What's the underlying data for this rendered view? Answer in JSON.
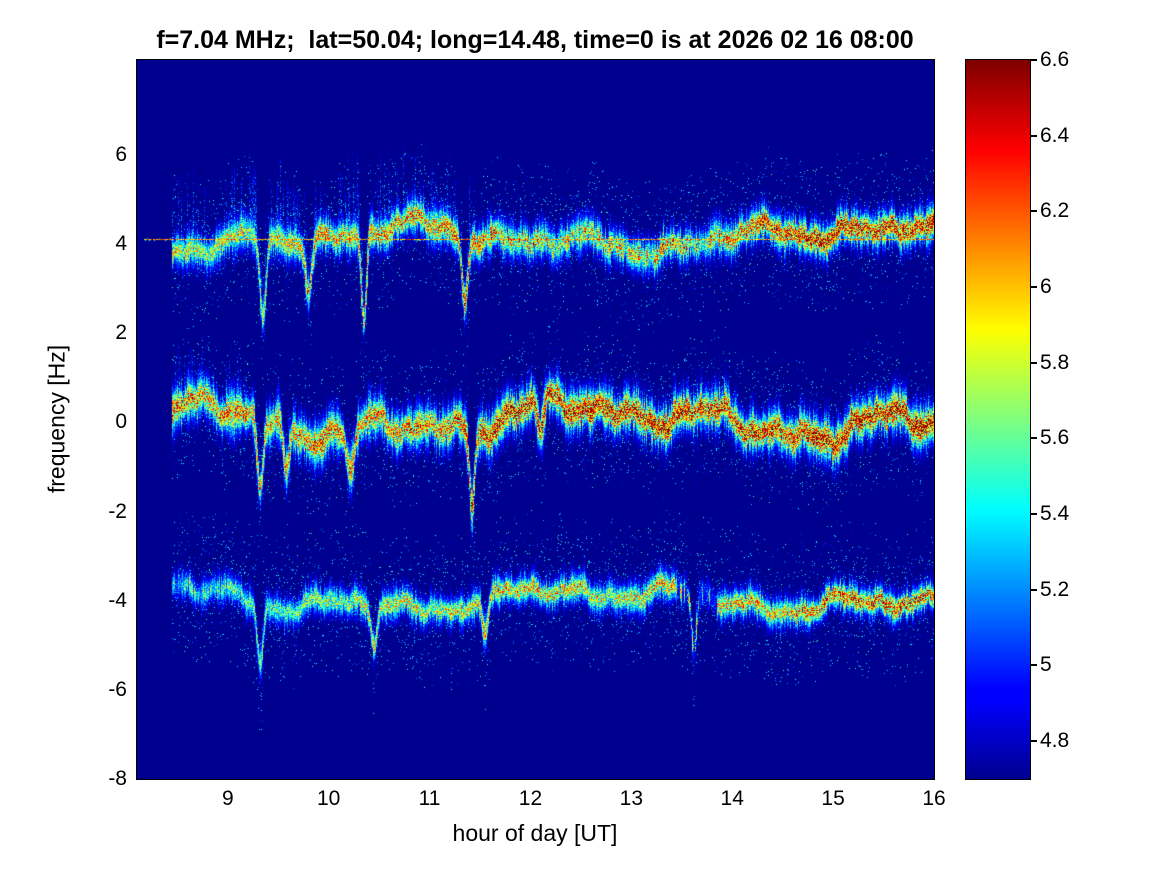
{
  "chart_data": {
    "type": "heatmap",
    "title": "f=7.04 MHz;  lat=50.04; long=14.48, time=0 is at 2026 02 16 08:00",
    "xlabel": "hour of day [UT]",
    "ylabel": "frequency [Hz]",
    "xlim": [
      8.1,
      16
    ],
    "ylim": [
      -8,
      8.13
    ],
    "xticks": [
      {
        "label": "9",
        "value": 9
      },
      {
        "label": "10",
        "value": 10
      },
      {
        "label": "11",
        "value": 11
      },
      {
        "label": "12",
        "value": 12
      },
      {
        "label": "13",
        "value": 13
      },
      {
        "label": "14",
        "value": 14
      },
      {
        "label": "15",
        "value": 15
      },
      {
        "label": "16",
        "value": 16
      }
    ],
    "yticks": [
      {
        "label": "6",
        "value": 6
      },
      {
        "label": "4",
        "value": 4
      },
      {
        "label": "2",
        "value": 2
      },
      {
        "label": "0",
        "value": 0
      },
      {
        "label": "-2",
        "value": -2
      },
      {
        "label": "-4",
        "value": -4
      },
      {
        "label": "-6",
        "value": -6
      },
      {
        "label": "-8",
        "value": -8
      }
    ],
    "colorbar": {
      "colormap": "jet",
      "min": 4.7,
      "max": 6.6,
      "ticks": [
        {
          "label": "6.6",
          "value": 6.6
        },
        {
          "label": "6.4",
          "value": 6.4
        },
        {
          "label": "6.2",
          "value": 6.2
        },
        {
          "label": "6",
          "value": 6
        },
        {
          "label": "5.8",
          "value": 5.8
        },
        {
          "label": "5.6",
          "value": 5.6
        },
        {
          "label": "5.4",
          "value": 5.4
        },
        {
          "label": "5.2",
          "value": 5.2
        },
        {
          "label": "5",
          "value": 5
        },
        {
          "label": "4.8",
          "value": 4.8
        }
      ]
    },
    "background_value": 4.7,
    "background_color": "#00008F",
    "data_start_hour": 8.45,
    "summary": "Doppler spectrogram with three noisy echo traces centered near +4.1 Hz, 0 Hz and -4 Hz, plus a thin constant carrier line at 4.12 Hz; intensity grows from cyan/yellow in the morning to dark red toward 16 UT.",
    "carrier_line": {
      "frequency_hz": 4.12,
      "start_hour": 8.17,
      "end_hour": 16,
      "intensity": 6.1
    },
    "bands": [
      {
        "name": "upper-trace",
        "center_hz": 4.15,
        "wander_hz": 0.32,
        "sigma_hz": 0.2,
        "intensity_start": 5.95,
        "intensity_end": 6.45,
        "flare_until_hour": 11.45,
        "flare_up_hz": 1.6,
        "spikes": [
          {
            "hour": 9.35,
            "depth_hz": -1.8,
            "width_h": 0.03
          },
          {
            "hour": 9.8,
            "depth_hz": -1.1,
            "width_h": 0.03
          },
          {
            "hour": 10.35,
            "depth_hz": -2.0,
            "width_h": 0.025
          },
          {
            "hour": 11.35,
            "depth_hz": -1.4,
            "width_h": 0.03
          }
        ],
        "dim_windows": [
          {
            "from": 11.55,
            "to": 13.95,
            "drop": 0.5,
            "prob": 0.45
          }
        ]
      },
      {
        "name": "center-trace",
        "center_hz": 0.08,
        "wander_hz": 0.42,
        "sigma_hz": 0.24,
        "intensity_start": 6.15,
        "intensity_end": 6.6,
        "flare_until_hour": 9.7,
        "flare_up_hz": 1.1,
        "spikes": [
          {
            "hour": 9.32,
            "depth_hz": -1.6,
            "width_h": 0.03
          },
          {
            "hour": 9.58,
            "depth_hz": -1.1,
            "width_h": 0.03
          },
          {
            "hour": 10.22,
            "depth_hz": -0.9,
            "width_h": 0.04
          },
          {
            "hour": 11.42,
            "depth_hz": -1.8,
            "width_h": 0.025
          },
          {
            "hour": 12.1,
            "depth_hz": -0.7,
            "width_h": 0.03
          }
        ],
        "dim_windows": []
      },
      {
        "name": "lower-trace",
        "center_hz": -3.95,
        "wander_hz": 0.3,
        "sigma_hz": 0.17,
        "intensity_start": 5.7,
        "intensity_end": 6.3,
        "flare_until_hour": 0,
        "flare_up_hz": 0,
        "spikes": [
          {
            "hour": 9.32,
            "depth_hz": -1.4,
            "width_h": 0.03
          },
          {
            "hour": 10.45,
            "depth_hz": -0.8,
            "width_h": 0.03
          },
          {
            "hour": 11.55,
            "depth_hz": -1.0,
            "width_h": 0.03
          },
          {
            "hour": 13.62,
            "depth_hz": -1.2,
            "width_h": 0.025
          }
        ],
        "dim_windows": [
          {
            "from": 8.45,
            "to": 9.0,
            "drop": 0.4,
            "prob": 0.5
          },
          {
            "from": 13.45,
            "to": 13.85,
            "drop": 1.1,
            "prob": 0.8
          }
        ]
      }
    ]
  }
}
